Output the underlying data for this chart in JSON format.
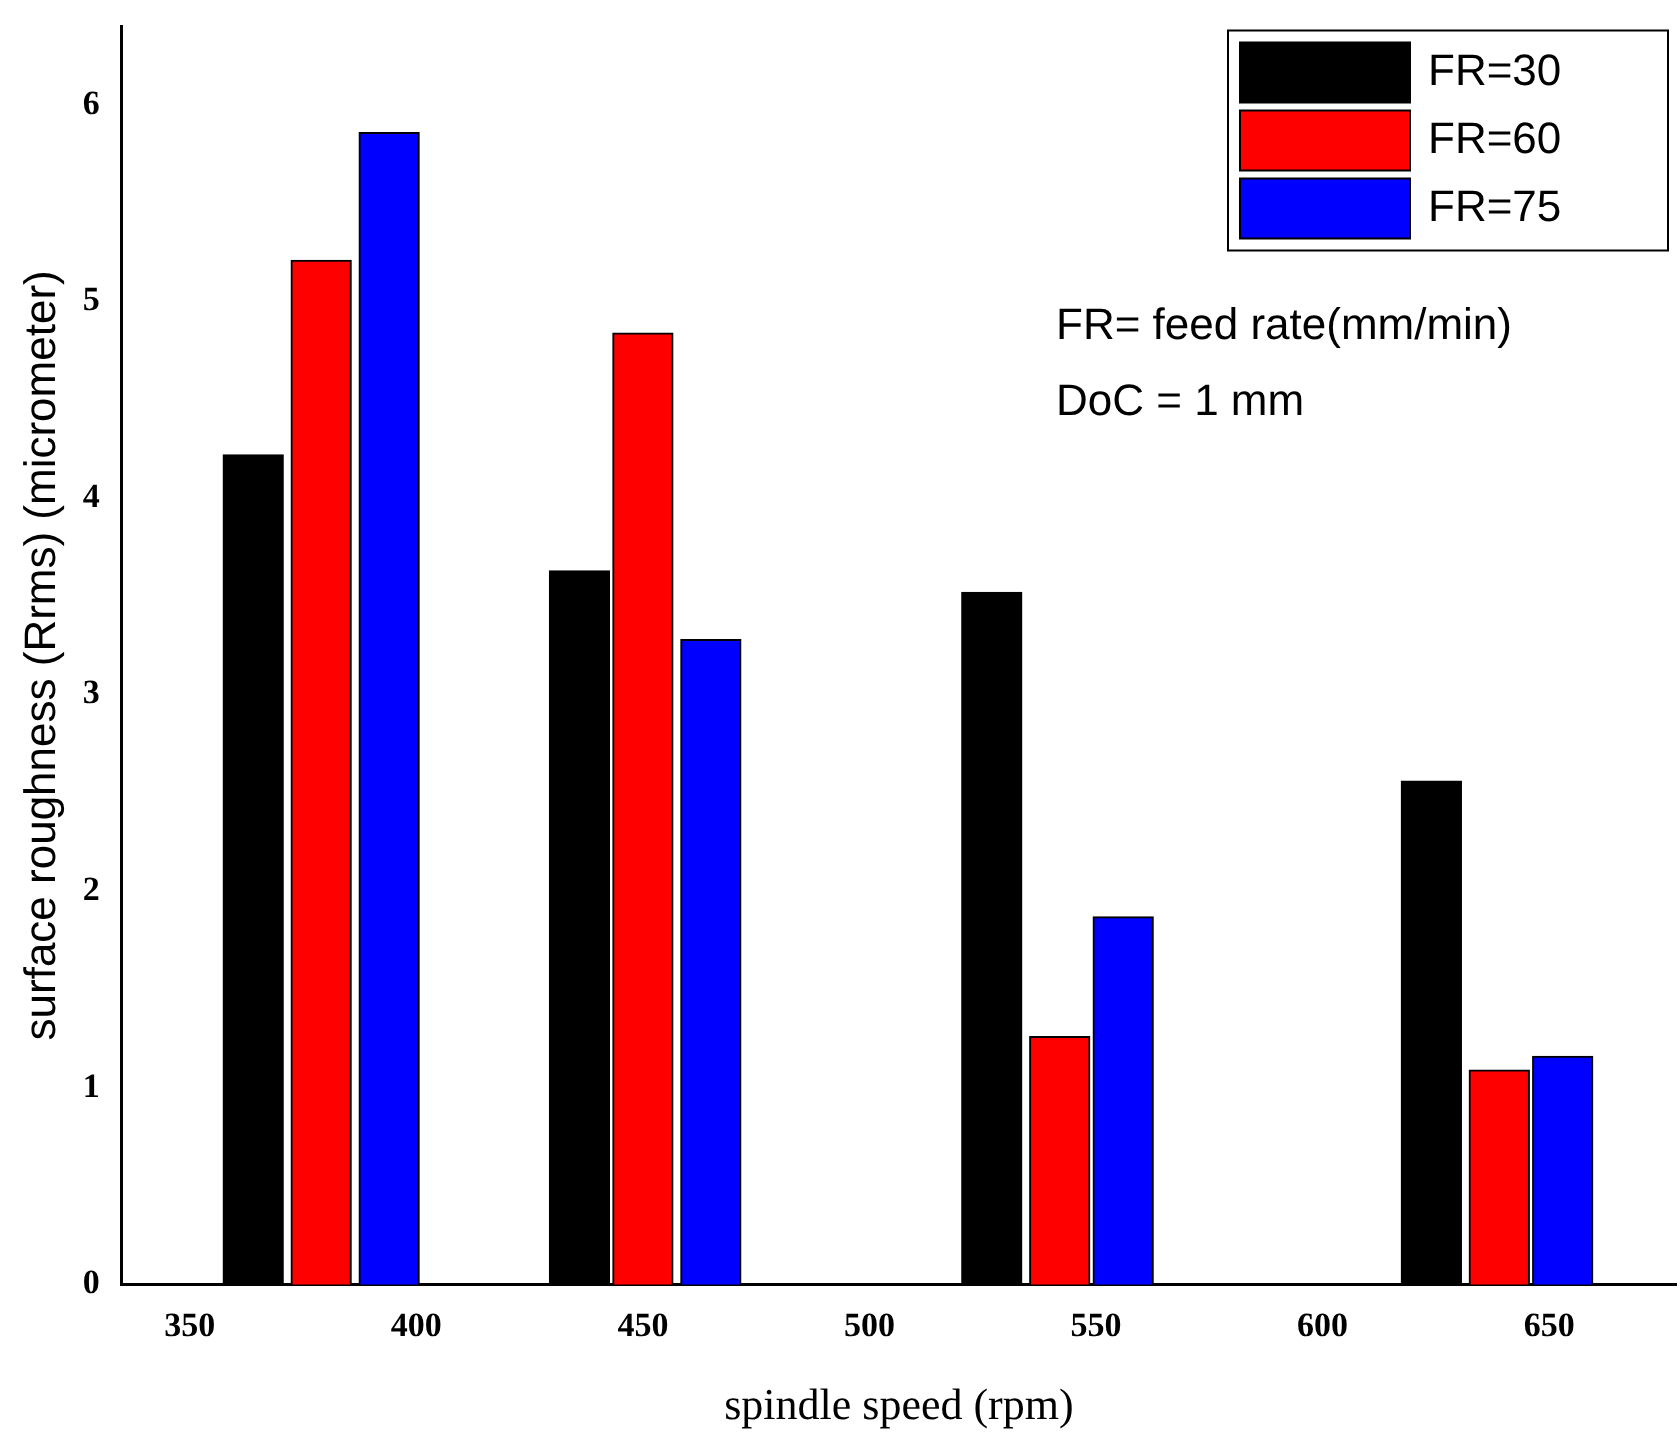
{
  "chart_data": {
    "type": "bar",
    "xlabel": "spindle speed (rpm)",
    "ylabel": "surface roughness (Rrms) (micrometer)",
    "series": [
      {
        "name": "FR=30",
        "color": "#000000",
        "x": [
          364,
          436,
          527,
          624
        ],
        "values": [
          4.22,
          3.63,
          3.52,
          2.56
        ]
      },
      {
        "name": "FR=60",
        "color": "#ff0000",
        "x": [
          379,
          450,
          542,
          639
        ],
        "values": [
          5.21,
          4.84,
          1.26,
          1.09
        ]
      },
      {
        "name": "FR=75",
        "color": "#0000ff",
        "x": [
          394,
          465,
          556,
          653
        ],
        "values": [
          5.86,
          3.28,
          1.87,
          1.16
        ]
      }
    ],
    "xlim": [
      335,
      678
    ],
    "xticks": [
      350,
      400,
      450,
      500,
      550,
      600,
      650
    ],
    "ylim": [
      0,
      6.4
    ],
    "yticks": [
      0,
      1,
      2,
      3,
      4,
      5,
      6
    ],
    "legend": "top right",
    "grid": false,
    "annotations": [
      "FR= feed rate(mm/min)",
      "DoC = 1 mm"
    ]
  }
}
